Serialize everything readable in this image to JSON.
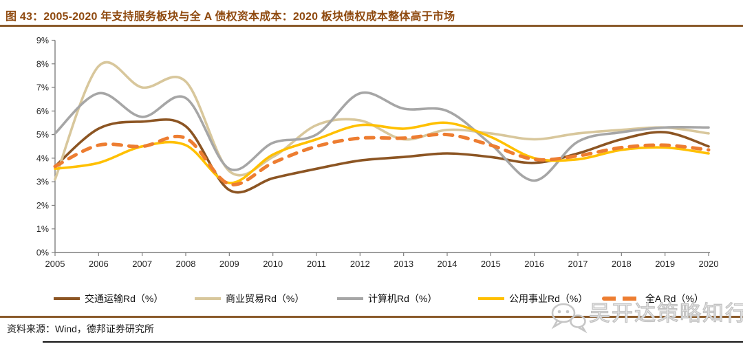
{
  "header": {
    "figure_label": "图 43",
    "title": "图 43：2005-2020 年支持服务板块与全 A 债权资本成本：2020 板块债权成本整体高于市场"
  },
  "footer": {
    "source": "资料来源：Wind，德邦证券研究所"
  },
  "watermark": {
    "icon": "wechat-bubbles-icon",
    "text": "吴开达策略知行"
  },
  "colors": {
    "title": "#8f4a10",
    "divider": "#8a5a2a",
    "axis": "#7f7f7f",
    "tick_label": "#262626",
    "watermark": "#c2c2c2"
  },
  "chart_data": {
    "type": "line",
    "title": "",
    "xlabel": "",
    "ylabel": "",
    "x": [
      2005,
      2006,
      2007,
      2008,
      2009,
      2010,
      2011,
      2012,
      2013,
      2014,
      2015,
      2016,
      2017,
      2018,
      2019,
      2020
    ],
    "x_labels": [
      "2005",
      "2006",
      "2007",
      "2008",
      "2009",
      "2010",
      "2011",
      "2012",
      "2013",
      "2014",
      "2015",
      "2016",
      "2017",
      "2018",
      "2019",
      "2020"
    ],
    "ylim": [
      0,
      9
    ],
    "y_ticks": [
      "0%",
      "1%",
      "2%",
      "3%",
      "4%",
      "5%",
      "6%",
      "7%",
      "8%",
      "9%"
    ],
    "grid": false,
    "legend_position": "bottom",
    "smoothed": true,
    "series": [
      {
        "key": "transport",
        "name": "交通运输Rd（%）",
        "color": "#8c5523",
        "style": "solid",
        "values": [
          3.65,
          5.25,
          5.55,
          5.35,
          2.65,
          3.15,
          3.55,
          3.9,
          4.05,
          4.2,
          4.05,
          3.8,
          4.2,
          4.8,
          5.1,
          4.5
        ]
      },
      {
        "key": "retail",
        "name": "商业贸易Rd（%）",
        "color": "#d8c79c",
        "style": "solid",
        "values": [
          3.1,
          7.9,
          7.0,
          7.25,
          3.45,
          4.05,
          5.4,
          5.6,
          4.8,
          5.2,
          5.05,
          4.8,
          5.05,
          5.2,
          5.3,
          5.05
        ]
      },
      {
        "key": "computer",
        "name": "计算机Rd（%）",
        "color": "#a6a6a6",
        "style": "solid",
        "values": [
          5.05,
          6.75,
          5.75,
          6.55,
          3.55,
          4.65,
          5.0,
          6.75,
          6.1,
          6.0,
          4.6,
          3.05,
          4.7,
          5.1,
          5.3,
          5.3
        ]
      },
      {
        "key": "utilities",
        "name": "公用事业Rd（%）",
        "color": "#ffc000",
        "style": "solid",
        "values": [
          3.55,
          3.8,
          4.5,
          4.55,
          2.95,
          4.15,
          4.8,
          5.4,
          5.25,
          5.5,
          4.9,
          4.0,
          3.95,
          4.35,
          4.45,
          4.2
        ]
      },
      {
        "key": "all-a",
        "name": "全A Rd（%）",
        "color": "#ed7d31",
        "style": "dashed",
        "values": [
          3.65,
          4.55,
          4.5,
          4.85,
          2.9,
          3.8,
          4.5,
          4.85,
          4.85,
          5.0,
          4.55,
          3.95,
          4.1,
          4.45,
          4.55,
          4.35
        ]
      }
    ]
  }
}
